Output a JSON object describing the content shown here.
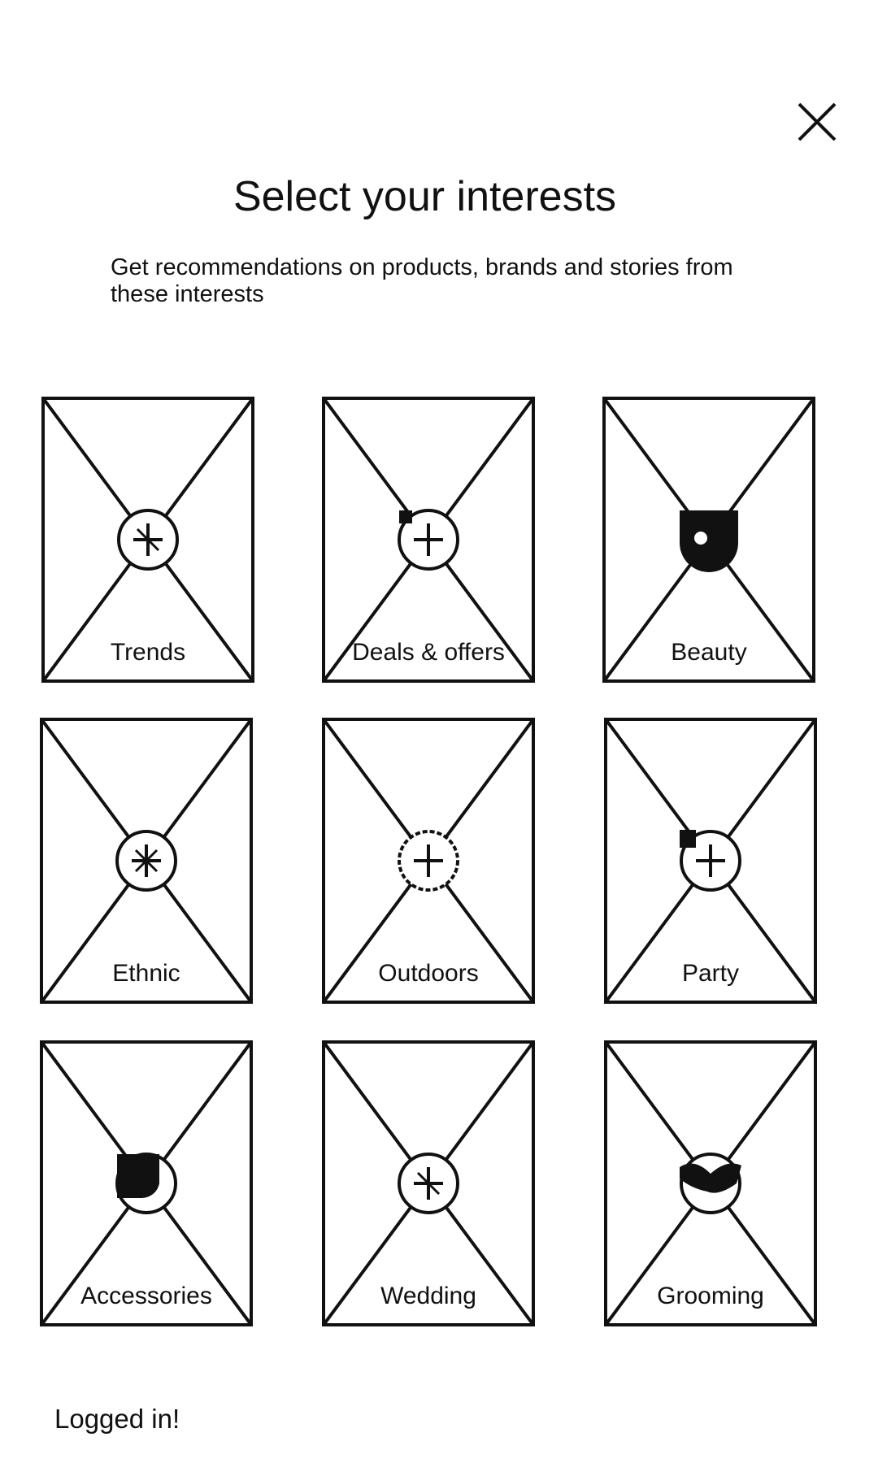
{
  "header": {
    "close_icon": "close-icon",
    "title": "Select your interests",
    "subtitle": "Get recommendations on products, brands and stories from these interests"
  },
  "interests": [
    {
      "label": "Trends",
      "icon": "trends-icon"
    },
    {
      "label": "Deals & offers",
      "icon": "deals-icon"
    },
    {
      "label": "Beauty",
      "icon": "beauty-icon"
    },
    {
      "label": "Ethnic",
      "icon": "ethnic-icon"
    },
    {
      "label": "Outdoors",
      "icon": "outdoors-icon"
    },
    {
      "label": "Party",
      "icon": "party-icon"
    },
    {
      "label": "Accessories",
      "icon": "accessories-icon"
    },
    {
      "label": "Wedding",
      "icon": "wedding-icon"
    },
    {
      "label": "Grooming",
      "icon": "grooming-icon"
    }
  ],
  "footer": {
    "status": "Logged in!"
  }
}
